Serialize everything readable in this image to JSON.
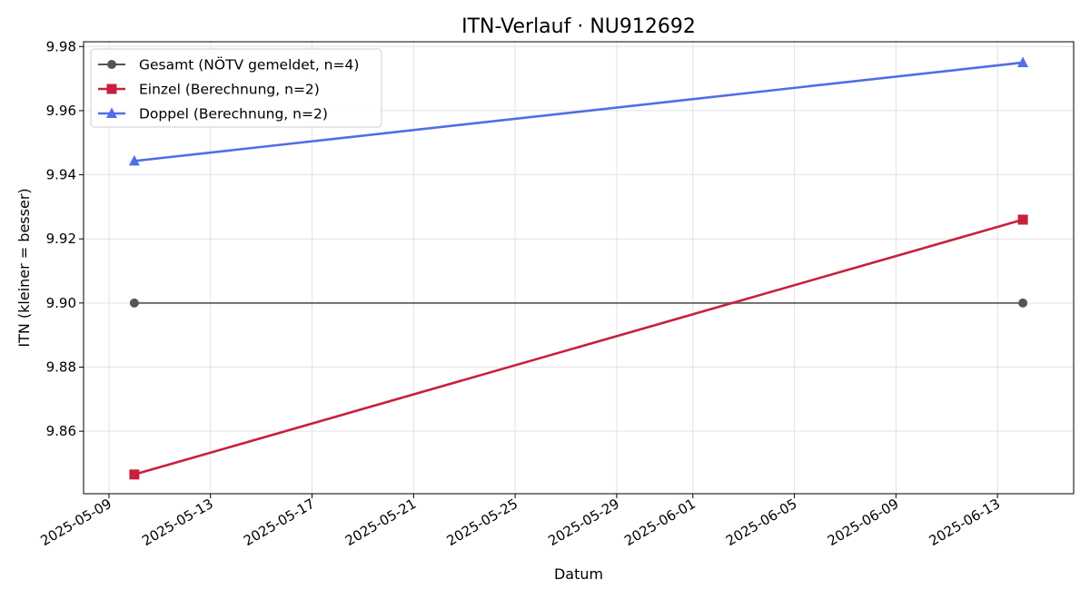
{
  "chart_data": {
    "type": "line",
    "title": "ITN-Verlauf · NU912692",
    "xlabel": "Datum",
    "ylabel": "ITN  (kleiner = besser)",
    "xlim": [
      "2025-05-08",
      "2025-06-16"
    ],
    "ylim": [
      9.8405,
      9.9815
    ],
    "x_ticks": [
      "2025-05-09",
      "2025-05-13",
      "2025-05-17",
      "2025-05-21",
      "2025-05-25",
      "2025-05-29",
      "2025-06-01",
      "2025-06-05",
      "2025-06-09",
      "2025-06-13"
    ],
    "y_ticks": [
      "9.86",
      "9.88",
      "9.90",
      "9.92",
      "9.94",
      "9.96",
      "9.98"
    ],
    "grid": true,
    "legend_position": "top-left",
    "series": [
      {
        "name": "Gesamt (NÖTV gemeldet, n=4)",
        "color": "#555555",
        "marker": "circle",
        "points": [
          {
            "x": "2025-05-10",
            "y": 9.9
          },
          {
            "x": "2025-06-14",
            "y": 9.9
          }
        ]
      },
      {
        "name": "Einzel (Berechnung, n=2)",
        "color": "#c8203c",
        "marker": "square",
        "points": [
          {
            "x": "2025-05-10",
            "y": 9.8465
          },
          {
            "x": "2025-06-14",
            "y": 9.926
          }
        ]
      },
      {
        "name": "Doppel (Berechnung, n=2)",
        "color": "#4f6ee8",
        "marker": "triangle",
        "points": [
          {
            "x": "2025-05-10",
            "y": 9.9443
          },
          {
            "x": "2025-06-14",
            "y": 9.975
          }
        ]
      }
    ]
  }
}
